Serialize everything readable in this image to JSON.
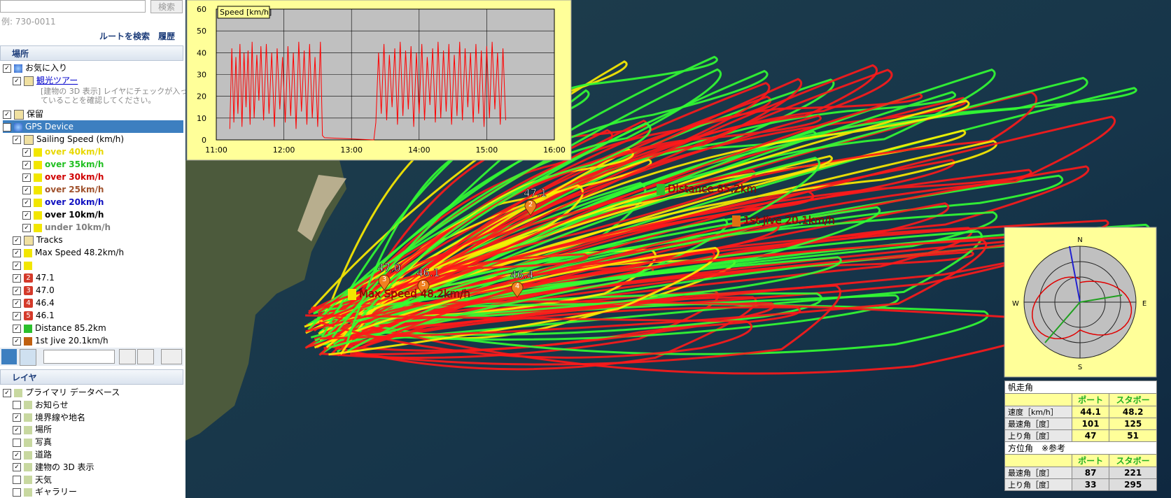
{
  "search": {
    "button": "検索",
    "example": "例: 730-0011",
    "links": [
      "ルートを検索",
      "履歴"
    ]
  },
  "places": {
    "header": "場所",
    "items": [
      {
        "label": "お気に入り",
        "level": 1,
        "checked": true,
        "icon": "globe"
      },
      {
        "label": "観光ツアー",
        "level": 2,
        "checked": true,
        "icon": "folder",
        "link": true
      },
      {
        "label": "[建物の 3D 表示] レイヤにチェックが入っていることを確認してください。",
        "level": 3,
        "icon": "note"
      },
      {
        "label": "保留",
        "level": 1,
        "checked": true,
        "icon": "folder"
      },
      {
        "label": "GPS Device",
        "level": 1,
        "checked": true,
        "icon": "globe",
        "selected": true
      },
      {
        "label": "Sailing Speed (km/h)",
        "level": 2,
        "checked": true,
        "icon": "folder"
      },
      {
        "label": "over 40km/h",
        "level": 3,
        "checked": true,
        "icon": "pin",
        "color": "#e8d800"
      },
      {
        "label": "over 35km/h",
        "level": 3,
        "checked": true,
        "icon": "pin",
        "color": "#22c022"
      },
      {
        "label": "over 30km/h",
        "level": 3,
        "checked": true,
        "icon": "pin",
        "color": "#d00000"
      },
      {
        "label": "over 25km/h",
        "level": 3,
        "checked": true,
        "icon": "pin",
        "color": "#a0522d"
      },
      {
        "label": "over 20km/h",
        "level": 3,
        "checked": true,
        "icon": "pin",
        "color": "#1010c0"
      },
      {
        "label": "over 10km/h",
        "level": 3,
        "checked": true,
        "icon": "pin",
        "color": "#000000"
      },
      {
        "label": "under 10km/h",
        "level": 3,
        "checked": true,
        "icon": "pin",
        "color": "#808080"
      },
      {
        "label": "Tracks",
        "level": 2,
        "checked": true,
        "icon": "folder"
      },
      {
        "label": "Max Speed 48.2km/h",
        "level": 2,
        "checked": true,
        "icon": "pin"
      },
      {
        "label": "",
        "level": 2,
        "checked": true,
        "icon": "pin"
      },
      {
        "label": "47.1",
        "level": 2,
        "checked": true,
        "icon": "badge",
        "badge": "2"
      },
      {
        "label": "47.0",
        "level": 2,
        "checked": true,
        "icon": "badge",
        "badge": "3"
      },
      {
        "label": "46.4",
        "level": 2,
        "checked": true,
        "icon": "badge",
        "badge": "4"
      },
      {
        "label": "46.1",
        "level": 2,
        "checked": true,
        "icon": "badge",
        "badge": "5"
      },
      {
        "label": "Distance 85.2km",
        "level": 2,
        "checked": true,
        "icon": "flag"
      },
      {
        "label": "1st Jive 20.1km/h",
        "level": 2,
        "checked": true,
        "icon": "pinbrown"
      }
    ]
  },
  "layers": {
    "header": "レイヤ",
    "items": [
      {
        "label": "プライマリ データベース",
        "level": 1,
        "checked": true
      },
      {
        "label": "お知らせ",
        "level": 2,
        "checked": false
      },
      {
        "label": "境界線や地名",
        "level": 2,
        "checked": true
      },
      {
        "label": "場所",
        "level": 2,
        "checked": true
      },
      {
        "label": "写真",
        "level": 2,
        "checked": false
      },
      {
        "label": "道路",
        "level": 2,
        "checked": true
      },
      {
        "label": "建物の 3D 表示",
        "level": 2,
        "checked": true
      },
      {
        "label": "天気",
        "level": 2,
        "checked": false
      },
      {
        "label": "ギャラリー",
        "level": 2,
        "checked": false
      }
    ]
  },
  "chart_data": {
    "type": "line",
    "title": "Speed [km/h]",
    "color": "#ff0000",
    "grid": true,
    "x": [
      11.2,
      11.23,
      11.26,
      11.29,
      11.32,
      11.35,
      11.38,
      11.41,
      11.44,
      11.47,
      11.5,
      11.53,
      11.56,
      11.6,
      11.63,
      11.66,
      11.7,
      11.74,
      11.78,
      11.82,
      11.86,
      11.9,
      11.94,
      11.98,
      12.02,
      12.06,
      12.1,
      12.14,
      12.18,
      12.22,
      12.26,
      12.3,
      12.34,
      12.38,
      12.42,
      12.46,
      12.5,
      12.54,
      12.57,
      12.6,
      13.33,
      13.36,
      13.4,
      13.44,
      13.48,
      13.52,
      13.56,
      13.6,
      13.64,
      13.68,
      13.72,
      13.76,
      13.8,
      13.84,
      13.88,
      13.92,
      13.96,
      14.0,
      14.04,
      14.08,
      14.12,
      14.16,
      14.2,
      14.24,
      14.28,
      14.32,
      14.36,
      14.4,
      14.44,
      14.48,
      14.52,
      14.56,
      14.6,
      14.64,
      14.68,
      14.72,
      14.76,
      14.8,
      14.84,
      14.88,
      14.92,
      14.96,
      15.0,
      15.04,
      15.08,
      15.12,
      15.16,
      15.2,
      15.24,
      15.28
    ],
    "values": [
      5,
      42,
      8,
      38,
      12,
      44,
      6,
      40,
      15,
      41,
      7,
      45,
      10,
      39,
      18,
      43,
      9,
      44,
      12,
      40,
      6,
      42,
      14,
      38,
      8,
      43,
      11,
      40,
      5,
      45,
      13,
      41,
      7,
      44,
      10,
      38,
      6,
      45,
      2,
      1,
      0,
      8,
      40,
      12,
      44,
      9,
      39,
      15,
      42,
      7,
      45,
      11,
      41,
      14,
      43,
      6,
      40,
      12,
      44,
      9,
      38,
      16,
      42,
      8,
      45,
      10,
      41,
      13,
      44,
      7,
      39,
      11,
      45,
      9,
      42,
      15,
      40,
      8,
      44,
      12,
      41,
      6,
      43,
      10,
      45,
      14,
      40,
      7,
      42,
      9
    ],
    "xlim": [
      11,
      16
    ],
    "xticks": [
      {
        "value": 11,
        "label": "11:00"
      },
      {
        "value": 12,
        "label": "12:00"
      },
      {
        "value": 13,
        "label": "13:00"
      },
      {
        "value": 14,
        "label": "14:00"
      },
      {
        "value": 15,
        "label": "15:00"
      },
      {
        "value": 16,
        "label": "16:00"
      }
    ],
    "ylim": [
      0,
      60
    ],
    "yticks": [
      0,
      10,
      20,
      30,
      40,
      50,
      60
    ]
  },
  "map_labels": [
    {
      "text": "47.1",
      "badge": "2"
    },
    {
      "text": "47.0",
      "badge": "3"
    },
    {
      "text": "46.1",
      "badge": "5"
    },
    {
      "text": "46.4",
      "badge": "4"
    },
    {
      "text": "Max Speed 48.2km/h"
    },
    {
      "text": "Distance 85.2km"
    },
    {
      "text": "1st Jive 20.1km/h"
    }
  ],
  "compass": {
    "north": "N",
    "south": "S",
    "east": "E",
    "west": "W"
  },
  "angle_table": {
    "title": "帆走角",
    "header": [
      "ポート",
      "スタボー"
    ],
    "rows": [
      [
        "速度［km/h］",
        44.1,
        48.2
      ],
      [
        "最速角［度］",
        101,
        125
      ],
      [
        "上り角［度］",
        47,
        51
      ]
    ]
  },
  "bearing_table": {
    "title": "方位角　※参考",
    "header": [
      "ポート",
      "スタボー"
    ],
    "rows": [
      [
        "最速角［度］",
        87,
        221
      ],
      [
        "上り角［度］",
        33,
        295
      ]
    ]
  }
}
